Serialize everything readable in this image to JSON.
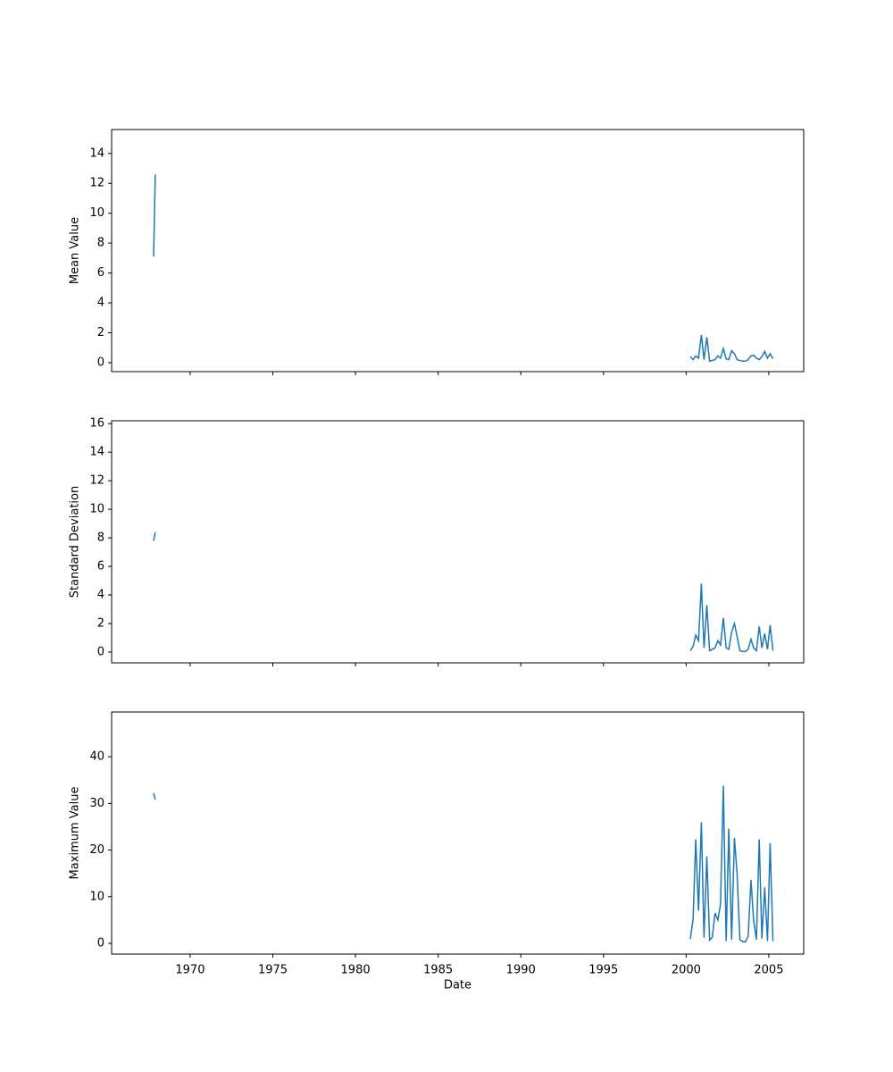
{
  "chart_data": [
    {
      "type": "line",
      "ylabel": "Mean Value",
      "x": [
        1967.79,
        1967.89,
        1968.0,
        2000.25,
        2000.42,
        2000.58,
        2000.75,
        2000.92,
        2001.08,
        2001.25,
        2001.42,
        2001.58,
        2001.75,
        2001.92,
        2002.08,
        2002.25,
        2002.42,
        2002.58,
        2002.75,
        2002.92,
        2003.08,
        2003.25,
        2003.42,
        2003.58,
        2003.75,
        2003.92,
        2004.08,
        2004.25,
        2004.42,
        2004.58,
        2004.75,
        2004.92,
        2005.08,
        2005.25
      ],
      "series": [
        {
          "color": "#1f77b4",
          "values": [
            7.1,
            12.6,
            null,
            0.4,
            0.2,
            0.45,
            0.3,
            1.85,
            0.2,
            1.7,
            0.1,
            0.15,
            0.2,
            0.45,
            0.3,
            0.95,
            0.25,
            0.2,
            0.8,
            0.6,
            0.2,
            0.15,
            0.1,
            0.1,
            0.2,
            0.45,
            0.5,
            0.3,
            0.2,
            0.4,
            0.75,
            0.3,
            0.6,
            0.25
          ]
        }
      ],
      "xlim": [
        1965.25,
        2007.11
      ],
      "ylim": [
        -0.6,
        15.6
      ],
      "yticks": [
        0,
        2,
        4,
        6,
        8,
        10,
        12,
        14
      ]
    },
    {
      "type": "line",
      "ylabel": "Standard Deviation",
      "x": [
        1967.79,
        1967.89,
        1968.0,
        2000.25,
        2000.42,
        2000.58,
        2000.75,
        2000.92,
        2001.08,
        2001.25,
        2001.42,
        2001.58,
        2001.75,
        2001.92,
        2002.08,
        2002.25,
        2002.42,
        2002.58,
        2002.75,
        2002.92,
        2003.08,
        2003.25,
        2003.42,
        2003.58,
        2003.75,
        2003.92,
        2004.08,
        2004.25,
        2004.42,
        2004.58,
        2004.75,
        2004.92,
        2005.08,
        2005.25
      ],
      "series": [
        {
          "color": "#1f77b4",
          "values": [
            7.8,
            8.4,
            null,
            0.1,
            0.4,
            1.2,
            0.8,
            4.8,
            0.3,
            3.3,
            0.1,
            0.2,
            0.3,
            0.8,
            0.5,
            2.4,
            0.3,
            0.2,
            1.4,
            2.0,
            1.1,
            0.1,
            0.05,
            0.05,
            0.2,
            0.9,
            0.3,
            0.1,
            1.8,
            0.3,
            1.3,
            0.2,
            1.9,
            0.1
          ]
        }
      ],
      "xlim": [
        1965.25,
        2007.11
      ],
      "ylim": [
        -0.75,
        16.2
      ],
      "yticks": [
        0,
        2,
        4,
        6,
        8,
        10,
        12,
        14,
        16
      ]
    },
    {
      "type": "line",
      "ylabel": "Maximum Value",
      "xlabel": "Date",
      "x": [
        1967.79,
        1967.89,
        1968.0,
        2000.25,
        2000.42,
        2000.58,
        2000.75,
        2000.92,
        2001.08,
        2001.25,
        2001.42,
        2001.58,
        2001.75,
        2001.92,
        2002.08,
        2002.25,
        2002.42,
        2002.58,
        2002.75,
        2002.92,
        2003.08,
        2003.25,
        2003.42,
        2003.58,
        2003.75,
        2003.92,
        2004.08,
        2004.25,
        2004.42,
        2004.58,
        2004.75,
        2004.92,
        2005.08,
        2005.25
      ],
      "series": [
        {
          "color": "#1f77b4",
          "values": [
            32.2,
            30.8,
            null,
            0.9,
            5.2,
            22.3,
            7,
            26,
            1.2,
            18.7,
            0.7,
            1.3,
            6.5,
            5,
            8.5,
            33.8,
            0.5,
            24.6,
            0.8,
            22.6,
            15,
            0.8,
            0.4,
            0.3,
            1.5,
            13.6,
            5,
            0.8,
            22.3,
            1,
            12,
            0.5,
            21.5,
            0.5
          ]
        }
      ],
      "xlim": [
        1965.25,
        2007.11
      ],
      "ylim": [
        -2.3,
        49.6
      ],
      "yticks": [
        0,
        10,
        20,
        30,
        40
      ],
      "xticks": [
        1970,
        1975,
        1980,
        1985,
        1990,
        1995,
        2000,
        2005
      ]
    }
  ]
}
